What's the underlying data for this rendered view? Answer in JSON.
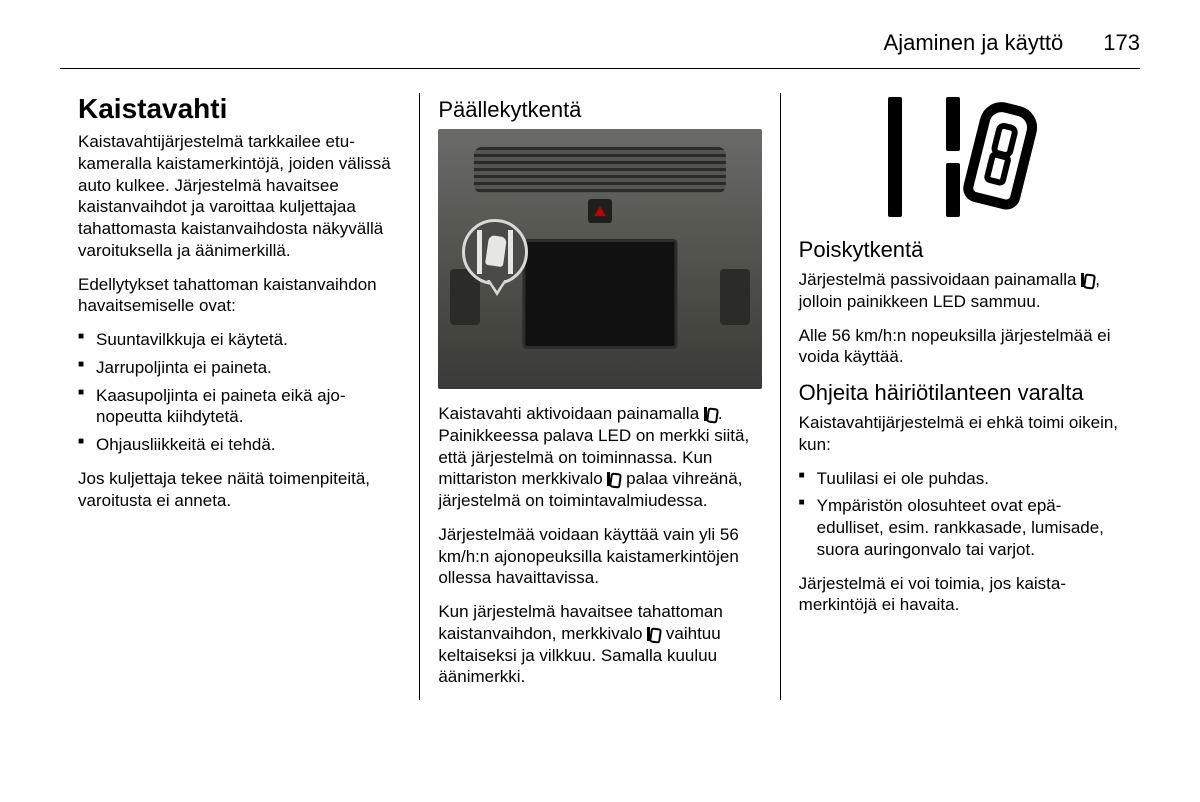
{
  "header": {
    "section": "Ajaminen ja käyttö",
    "page": "173"
  },
  "col1": {
    "h1": "Kaistavahti",
    "p1": "Kaistavahtijärjestelmä tarkkailee etu­kameralla kaistamerkintöjä, joiden välissä auto kulkee. Järjestelmä ha­vaitsee kaistanvaihdot ja varoittaa kuljettajaa tahattomasta kaistanvaih­dosta näkyvällä varoituksella ja ääni­merkillä.",
    "p2": "Edellytykset tahattoman kaistanvaih­don havaitsemiselle ovat:",
    "li1": "Suuntavilkkuja ei käytetä.",
    "li2": "Jarrupoljinta ei paineta.",
    "li3": "Kaasupoljinta ei paineta eikä ajo­nopeutta kiihdytetä.",
    "li4": "Ohjausliikkeitä ei tehdä.",
    "p3": "Jos kuljettaja tekee näitä toimenpi­teitä, varoitusta ei anneta."
  },
  "col2": {
    "h2": "Päällekytkentä",
    "p1a": "Kaistavahti aktivoidaan paina­malla ",
    "p1b": ". Painikkeessa palava LED on merkki siitä, että järjestelmä on toi­minnassa. Kun mittariston merkki­valo ",
    "p1c": " palaa vihreänä, järjestelmä on toimintavalmiudessa.",
    "p2": "Järjestelmää voidaan käyttää vain yli 56 km/h:n ajonopeuksilla kaistamer­kintöjen ollessa havaittavissa.",
    "p3a": "Kun järjestelmä havaitsee tahatto­man kaistanvaihdon, merkkivalo ",
    "p3b": " vaihtuu keltaiseksi ja vilkkuu. Samalla kuuluu äänimerkki."
  },
  "col3": {
    "h2a": "Poiskytkentä",
    "p1a": "Järjestelmä passivoidaan paina­malla ",
    "p1b": ", jolloin painikkeen LED sam­muu.",
    "p2": "Alle 56 km/h:n nopeuksilla järjestel­mää ei voida käyttää.",
    "h2b": "Ohjeita häiriötilanteen varalta",
    "p3": "Kaistavahtijärjestelmä ei ehkä toimi oikein, kun:",
    "li1": "Tuulilasi ei ole puhdas.",
    "li2": "Ympäristön olosuhteet ovat epä­edulliset, esim. rankkasade, lumi­sade, suora auringonvalo tai varjot.",
    "p4": "Järjestelmä ei voi toimia, jos kaista­merkintöjä ei havaita."
  }
}
